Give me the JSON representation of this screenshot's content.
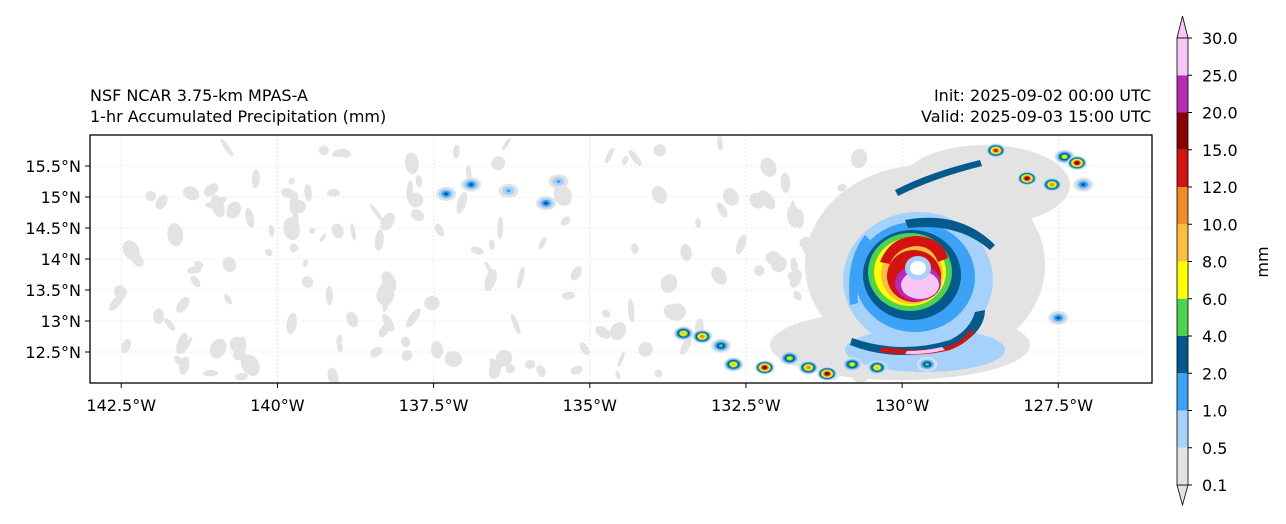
{
  "chart_data": {
    "type": "heatmap",
    "title_left": [
      "NSF NCAR 3.75-km MPAS-A",
      "1-hr Accumulated Precipitation (mm)"
    ],
    "title_right": [
      "Init: 2025-09-02 00:00 UTC",
      "Valid: 2025-09-03 15:00 UTC"
    ],
    "lon_range": [
      -143.0,
      -126.0
    ],
    "lat_range": [
      12.0,
      16.0
    ],
    "x_ticks": [
      {
        "value": -142.5,
        "label": "142.5°W"
      },
      {
        "value": -140.0,
        "label": "140°W"
      },
      {
        "value": -137.5,
        "label": "137.5°W"
      },
      {
        "value": -135.0,
        "label": "135°W"
      },
      {
        "value": -132.5,
        "label": "132.5°W"
      },
      {
        "value": -130.0,
        "label": "130°W"
      },
      {
        "value": -127.5,
        "label": "127.5°W"
      }
    ],
    "y_ticks": [
      {
        "value": 12.5,
        "label": "12.5°N"
      },
      {
        "value": 13.0,
        "label": "13°N"
      },
      {
        "value": 13.5,
        "label": "13.5°N"
      },
      {
        "value": 14.0,
        "label": "14°N"
      },
      {
        "value": 14.5,
        "label": "14.5°N"
      },
      {
        "value": 15.0,
        "label": "15°N"
      },
      {
        "value": 15.5,
        "label": "15.5°N"
      }
    ],
    "colorbar": {
      "label": "mm",
      "levels": [
        "0.1",
        "0.5",
        "1.0",
        "2.0",
        "4.0",
        "6.0",
        "8.0",
        "10.0",
        "12.0",
        "15.0",
        "20.0",
        "25.0",
        "30.0"
      ],
      "colors": [
        "#e3e3e3",
        "#a6d1fa",
        "#3ca2f5",
        "#045a8d",
        "#4fd24f",
        "#ffff00",
        "#fbbf3d",
        "#f28c28",
        "#d41212",
        "#8b0000",
        "#b52bb5",
        "#f7c6f7"
      ]
    },
    "storm": {
      "center_lon": -129.8,
      "center_lat": 13.85,
      "description": "Tropical cyclone with spiral rainbands"
    },
    "cells": [
      {
        "lon": -137.3,
        "lat": 15.05,
        "level": 3
      },
      {
        "lon": -136.9,
        "lat": 15.2,
        "level": 3
      },
      {
        "lon": -136.3,
        "lat": 15.1,
        "level": 2
      },
      {
        "lon": -135.7,
        "lat": 14.9,
        "level": 3
      },
      {
        "lon": -135.5,
        "lat": 15.25,
        "level": 2
      },
      {
        "lon": -133.5,
        "lat": 12.8,
        "level": 6
      },
      {
        "lon": -133.2,
        "lat": 12.75,
        "level": 7
      },
      {
        "lon": -132.9,
        "lat": 12.6,
        "level": 4
      },
      {
        "lon": -132.7,
        "lat": 12.3,
        "level": 6
      },
      {
        "lon": -132.2,
        "lat": 12.25,
        "level": 9
      },
      {
        "lon": -131.8,
        "lat": 12.4,
        "level": 5
      },
      {
        "lon": -131.5,
        "lat": 12.25,
        "level": 7
      },
      {
        "lon": -131.2,
        "lat": 12.15,
        "level": 9
      },
      {
        "lon": -130.8,
        "lat": 12.3,
        "level": 5
      },
      {
        "lon": -130.4,
        "lat": 12.25,
        "level": 6
      },
      {
        "lon": -129.6,
        "lat": 12.3,
        "level": 4
      },
      {
        "lon": -128.5,
        "lat": 15.75,
        "level": 8
      },
      {
        "lon": -128.0,
        "lat": 15.3,
        "level": 9
      },
      {
        "lon": -127.6,
        "lat": 15.2,
        "level": 7
      },
      {
        "lon": -127.4,
        "lat": 15.65,
        "level": 5
      },
      {
        "lon": -127.2,
        "lat": 15.55,
        "level": 9
      },
      {
        "lon": -127.1,
        "lat": 15.2,
        "level": 3
      },
      {
        "lon": -127.5,
        "lat": 13.05,
        "level": 3
      }
    ]
  }
}
